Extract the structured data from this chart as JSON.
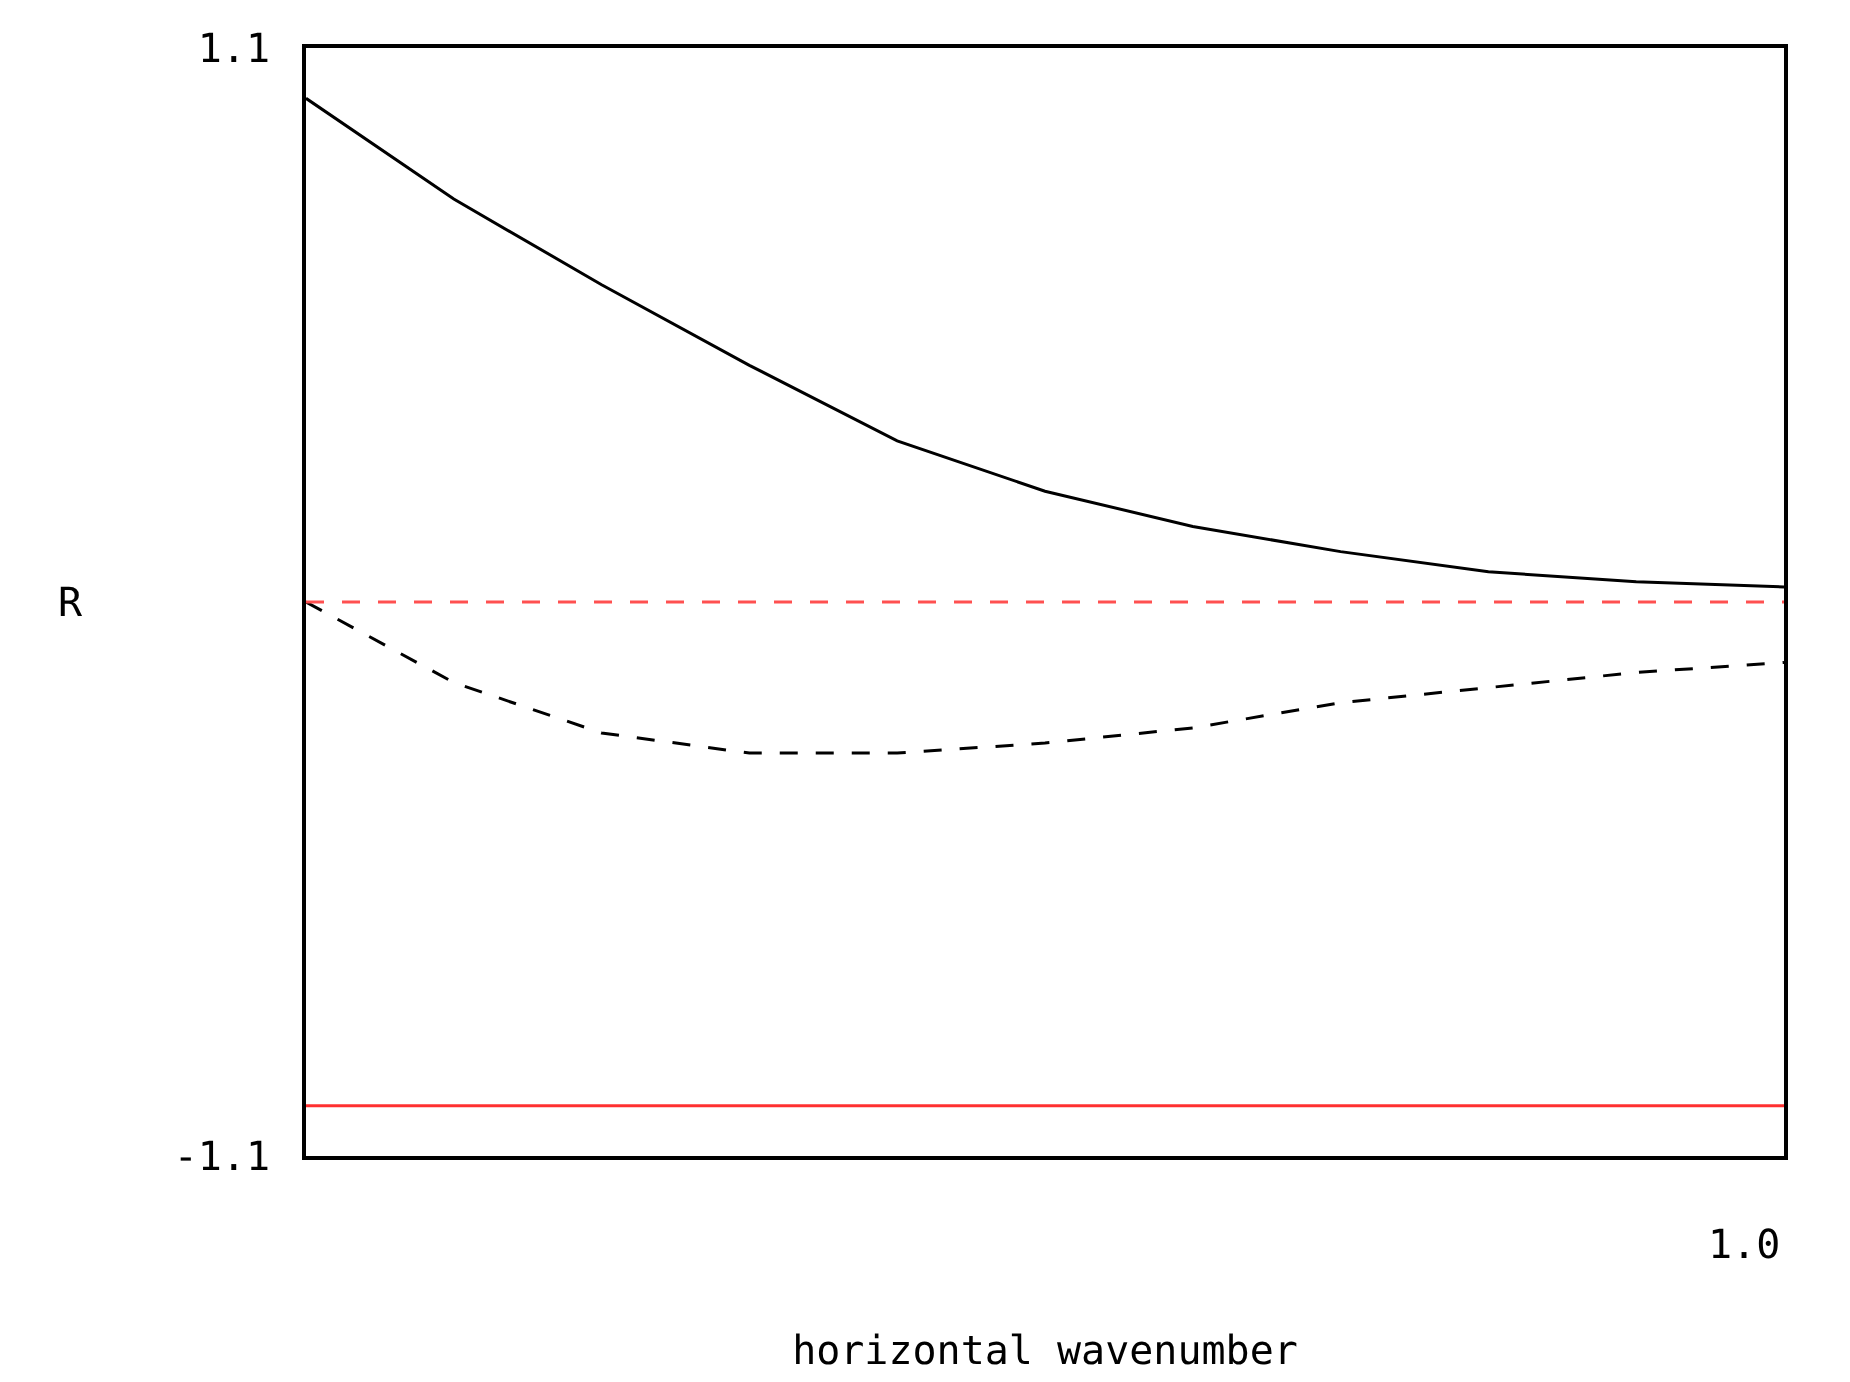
{
  "chart_data": {
    "type": "line",
    "xlabel": "horizontal wavenumber",
    "ylabel": "R",
    "annotations": [
      "1.0"
    ],
    "categories": [
      null,
      null,
      null,
      null,
      null,
      null,
      null,
      null,
      null,
      null,
      null
    ],
    "ylim": [
      -1.1,
      1.1
    ],
    "yticks": [
      {
        "value": -1.1,
        "label": "-1.1"
      },
      {
        "value": 1.1,
        "label": "1.1"
      }
    ],
    "marker": "none",
    "series": [
      {
        "color": "#000000",
        "line_style": "solid",
        "values": [
          1.0,
          0.8,
          0.63,
          0.47,
          0.32,
          0.22,
          0.15,
          0.1,
          0.06,
          0.04,
          0.03
        ]
      },
      {
        "color": "#000000",
        "line_style": "dashed",
        "values": [
          0,
          -0.16,
          -0.26,
          -0.3,
          -0.3,
          -0.28,
          -0.25,
          -0.2,
          -0.17,
          -0.14,
          -0.12
        ]
      },
      {
        "color": "#ff5050",
        "line_style": "dashed",
        "values": [
          0,
          0,
          0,
          0,
          0,
          0,
          0,
          0,
          0,
          0,
          0
        ]
      },
      {
        "color": "#ff3030",
        "line_style": "solid",
        "values": [
          -1.0,
          -1.0,
          -1.0,
          -1.0,
          -1.0,
          -1.0,
          -1.0,
          -1.0,
          -1.0,
          -1.0,
          -1.0
        ]
      }
    ]
  }
}
